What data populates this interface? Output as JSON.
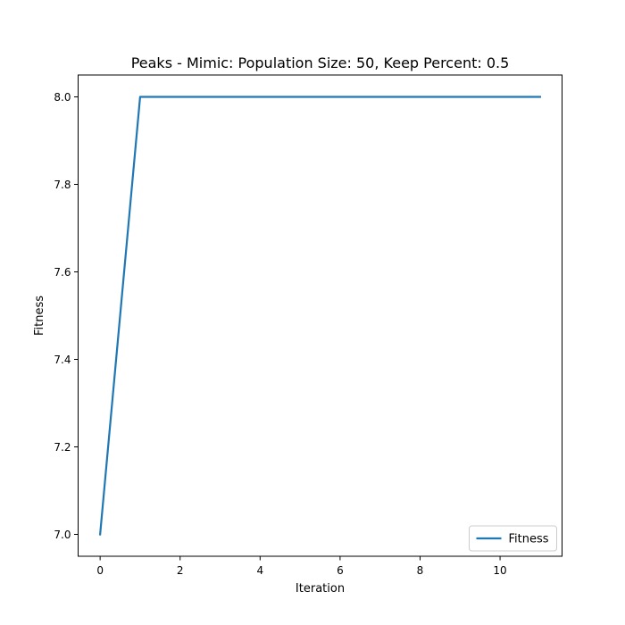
{
  "chart_data": {
    "type": "line",
    "title": "Peaks - Mimic: Population Size: 50, Keep Percent: 0.5",
    "xlabel": "Iteration",
    "ylabel": "Fitness",
    "xlim": [
      -0.55,
      11.55
    ],
    "ylim": [
      6.95,
      8.05
    ],
    "xticks": [
      0,
      2,
      4,
      6,
      8,
      10
    ],
    "xtick_labels": [
      "0",
      "2",
      "4",
      "6",
      "8",
      "10"
    ],
    "yticks": [
      7.0,
      7.2,
      7.4,
      7.6,
      7.8,
      8.0
    ],
    "ytick_labels": [
      "7.0",
      "7.2",
      "7.4",
      "7.6",
      "7.8",
      "8.0"
    ],
    "grid": false,
    "legend": {
      "position": "lower-right",
      "entries": [
        "Fitness"
      ]
    },
    "series": [
      {
        "name": "Fitness",
        "color": "#1f77b4",
        "x": [
          0,
          1,
          2,
          3,
          4,
          5,
          6,
          7,
          8,
          9,
          10,
          11
        ],
        "y": [
          7.0,
          8.0,
          8.0,
          8.0,
          8.0,
          8.0,
          8.0,
          8.0,
          8.0,
          8.0,
          8.0,
          8.0
        ]
      }
    ]
  }
}
